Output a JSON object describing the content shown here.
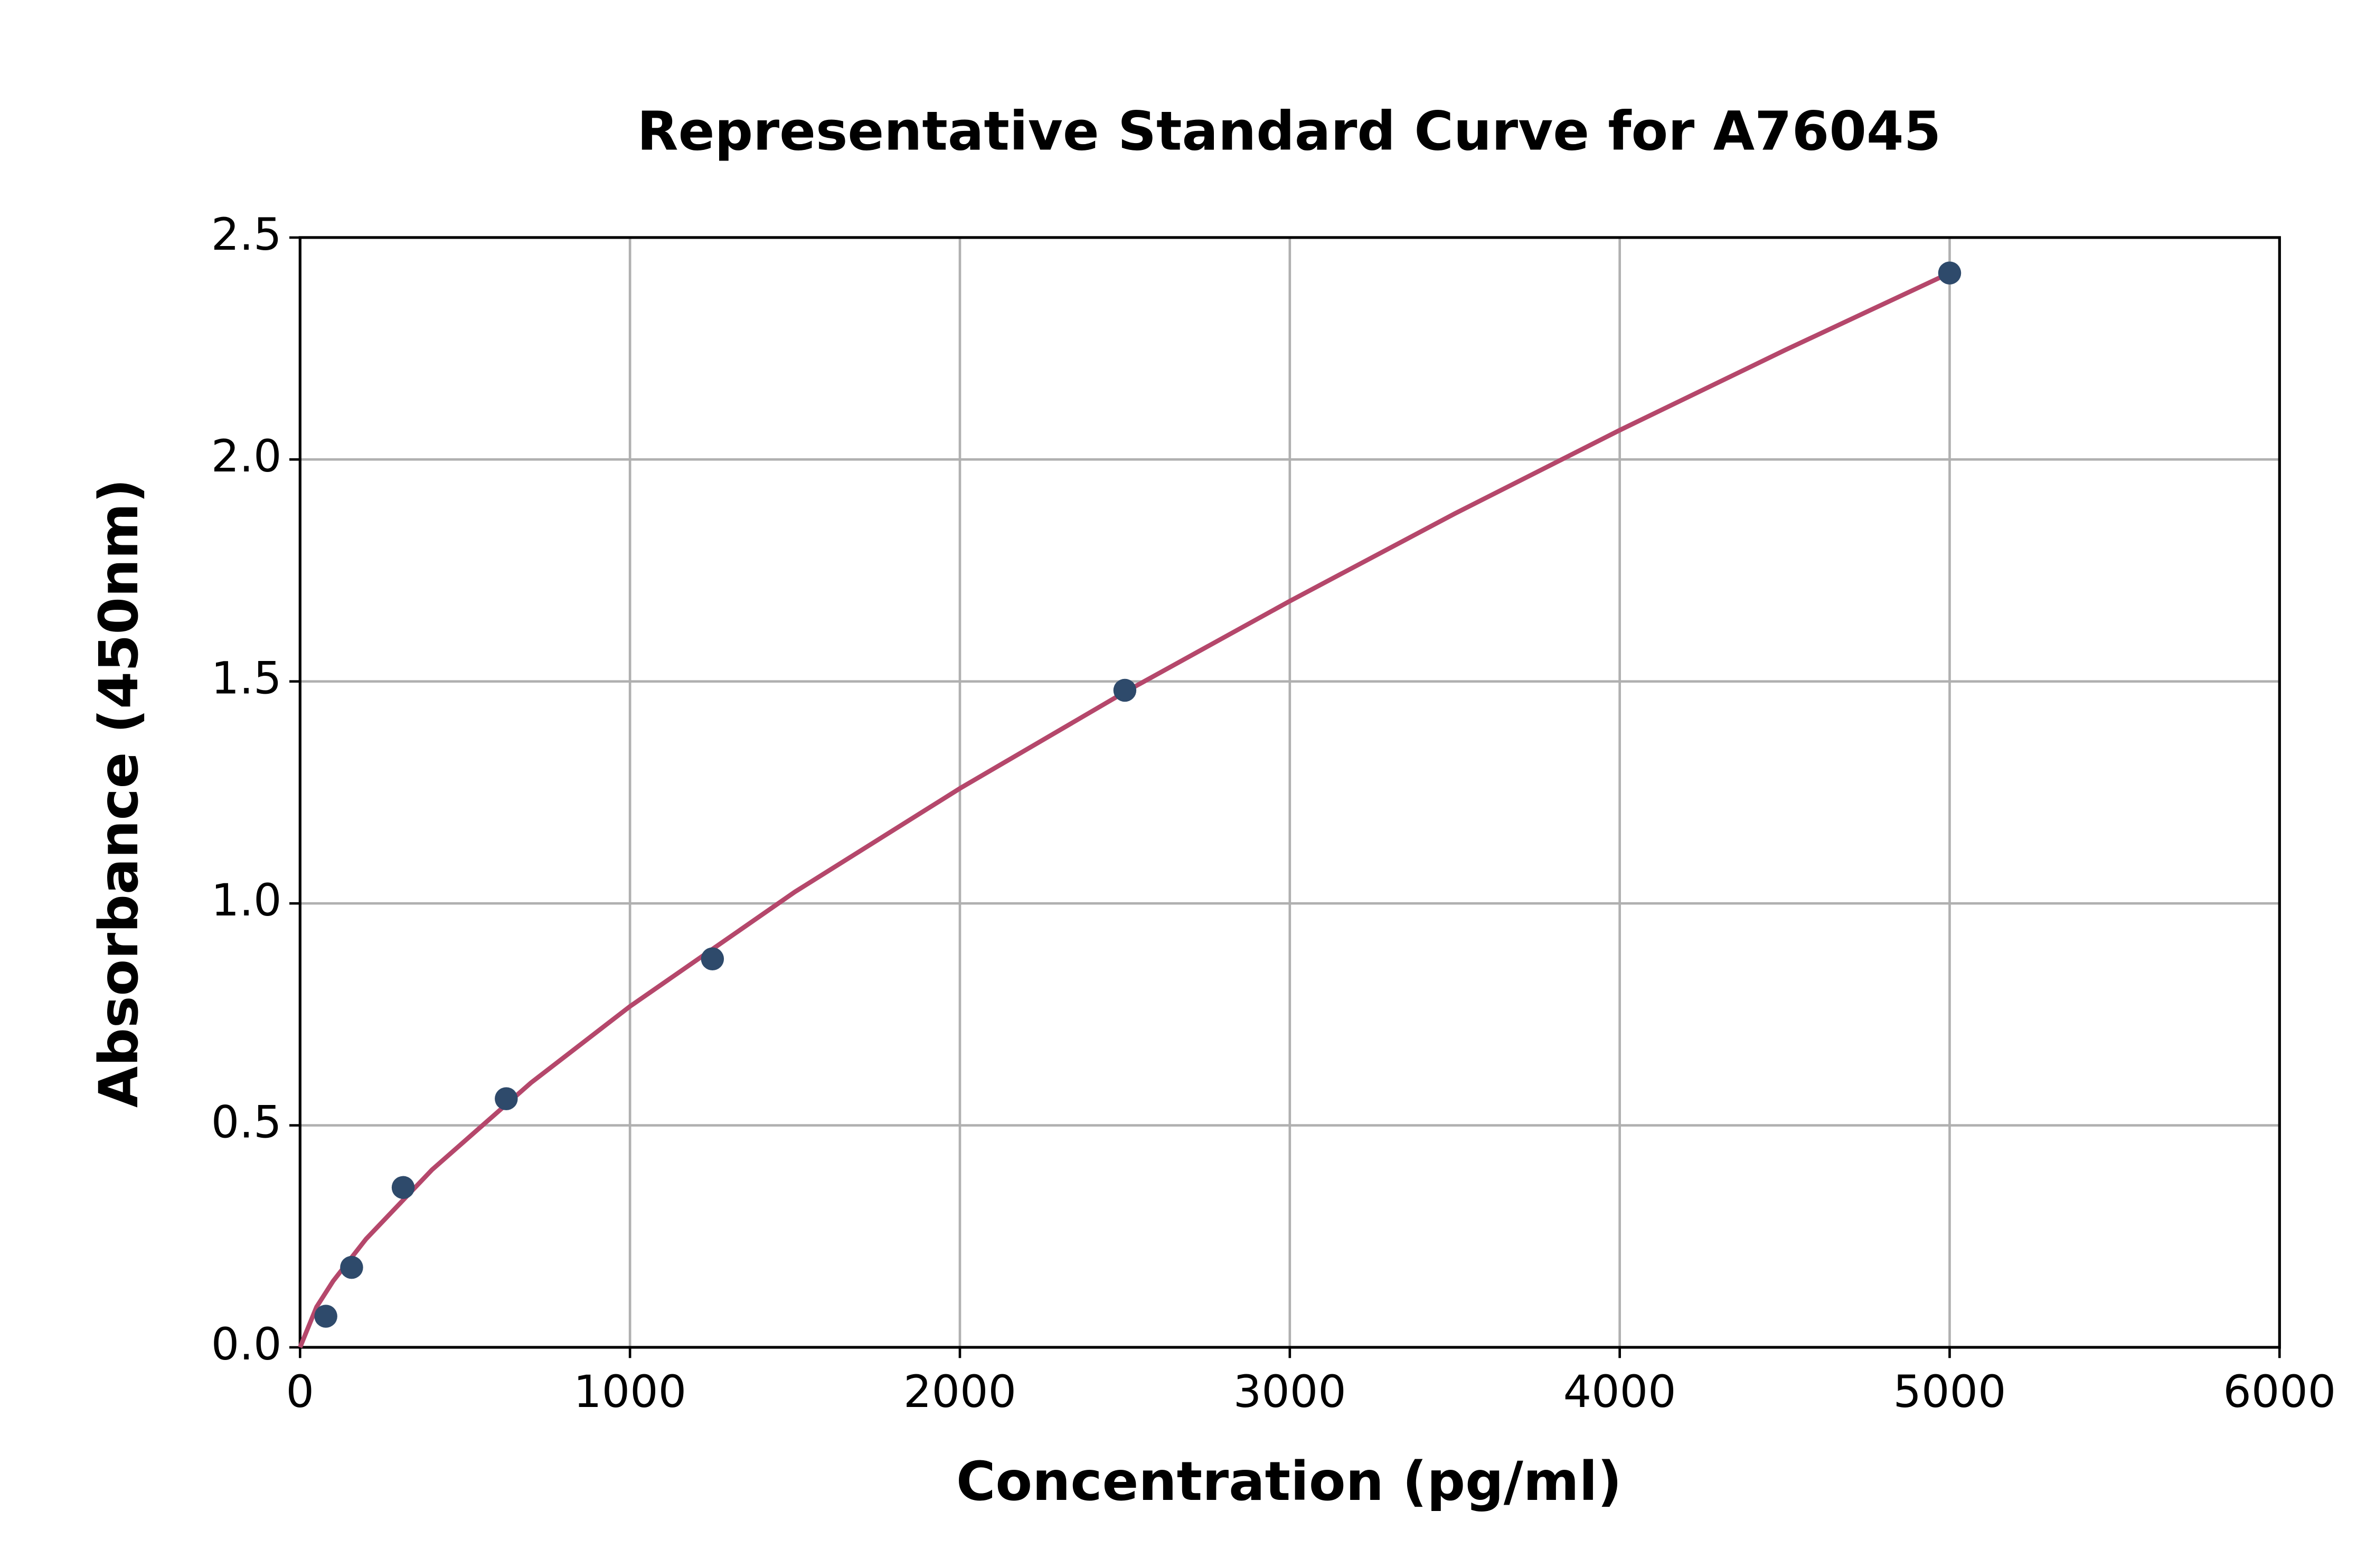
{
  "chart_data": {
    "type": "scatter",
    "title": "Representative Standard Curve for A76045",
    "x_label": "Concentration (pg/ml)",
    "y_label": "Absorbance (450nm)",
    "xlim": [
      0,
      6000
    ],
    "xticks": [
      0,
      1000,
      2000,
      3000,
      4000,
      5000,
      6000
    ],
    "ylim": [
      0,
      2.5
    ],
    "yticks": [
      {
        "value": 0,
        "label": "0.0"
      },
      0.5,
      {
        "value": 1,
        "label": "1.0"
      },
      1.5,
      {
        "value": 2,
        "label": "2.0"
      },
      2.5
    ],
    "grid": true,
    "series": [
      {
        "type": "line",
        "color": "#b5476b",
        "x": [
          0,
          50,
          100,
          200,
          400,
          700,
          1000,
          1500,
          2000,
          2500,
          3000,
          3500,
          4000,
          4500,
          5000
        ],
        "values": [
          0,
          0.091,
          0.149,
          0.244,
          0.4,
          0.596,
          0.768,
          1.026,
          1.259,
          1.476,
          1.681,
          1.878,
          2.066,
          2.246,
          2.42
        ]
      },
      {
        "type": "scatter",
        "color": "#2e4a6b",
        "x": [
          78.125,
          156.25,
          312.5,
          625,
          1250,
          2500,
          5000
        ],
        "values": [
          0.07,
          0.18,
          0.36,
          0.56,
          0.875,
          1.48,
          2.42
        ]
      }
    ]
  }
}
